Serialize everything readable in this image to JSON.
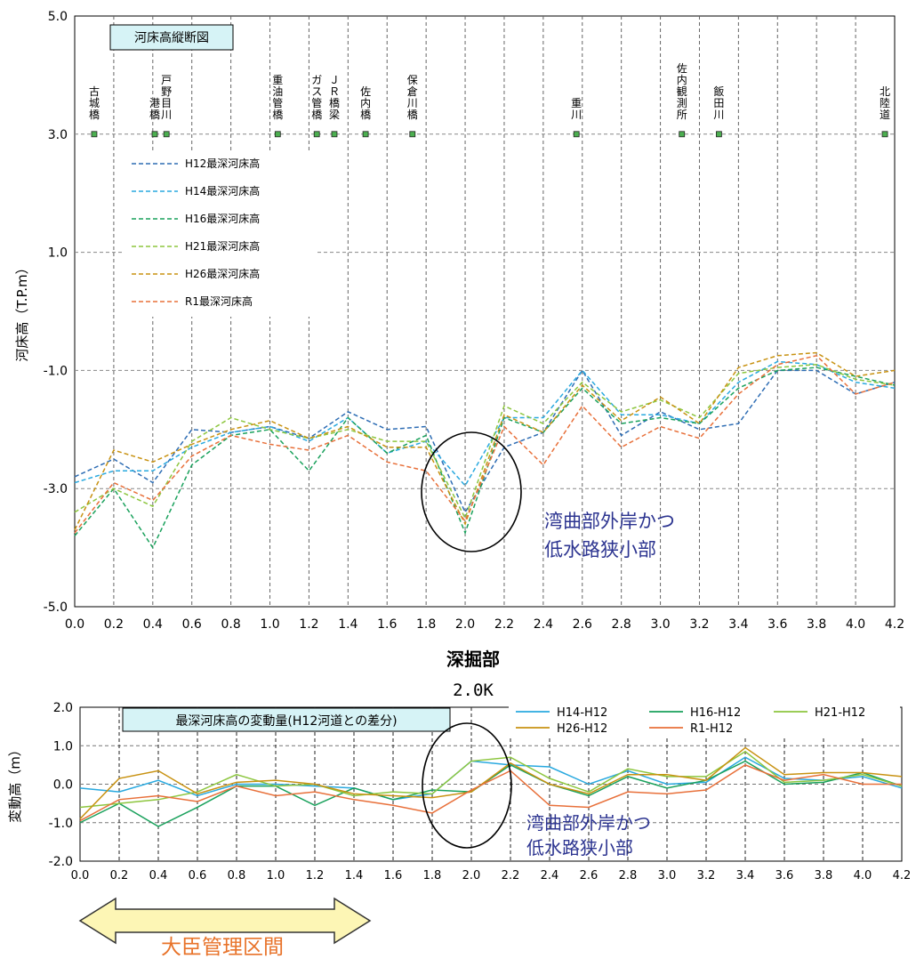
{
  "chart_data": [
    {
      "type": "line",
      "title": "河床高縦断図",
      "ylabel": "河床高（T.P.m）",
      "xlabel": "深掘部",
      "xlim": [
        0.0,
        4.2
      ],
      "ylim": [
        -5.0,
        5.0
      ],
      "x_ticks": [
        "0.0",
        "0.2",
        "0.4",
        "0.6",
        "0.8",
        "1.0",
        "1.2",
        "1.4",
        "1.6",
        "1.8",
        "2.0",
        "2.2",
        "2.4",
        "2.6",
        "2.8",
        "3.0",
        "3.2",
        "3.4",
        "3.6",
        "3.8",
        "4.0",
        "4.2"
      ],
      "y_ticks": [
        "5.0",
        "3.0",
        "1.0",
        "-1.0",
        "-3.0",
        "-5.0"
      ],
      "x": [
        0.0,
        0.2,
        0.4,
        0.6,
        0.8,
        1.0,
        1.2,
        1.4,
        1.6,
        1.8,
        2.0,
        2.2,
        2.4,
        2.6,
        2.8,
        3.0,
        3.2,
        3.4,
        3.6,
        3.8,
        4.0,
        4.2
      ],
      "series": [
        {
          "name": "H12最深河床高",
          "color": "#2e6db4",
          "values": [
            -2.8,
            -2.5,
            -2.9,
            -2.0,
            -2.05,
            -1.95,
            -2.15,
            -1.7,
            -2.0,
            -1.95,
            -3.4,
            -2.3,
            -2.05,
            -1.0,
            -2.1,
            -1.7,
            -2.0,
            -1.9,
            -1.0,
            -1.0,
            -1.4,
            -1.2
          ]
        },
        {
          "name": "H14最深河床高",
          "color": "#29a9df",
          "values": [
            -2.9,
            -2.7,
            -2.7,
            -2.3,
            -2.05,
            -1.95,
            -2.2,
            -1.8,
            -2.4,
            -2.2,
            -2.95,
            -1.8,
            -1.8,
            -1.0,
            -1.75,
            -1.75,
            -1.9,
            -1.2,
            -0.85,
            -0.9,
            -1.2,
            -1.3
          ]
        },
        {
          "name": "H16最深河床高",
          "color": "#1aa15c",
          "values": [
            -3.8,
            -3.0,
            -4.0,
            -2.6,
            -2.1,
            -2.0,
            -2.7,
            -1.8,
            -2.4,
            -2.1,
            -3.75,
            -1.8,
            -2.05,
            -1.3,
            -1.9,
            -1.8,
            -1.9,
            -1.3,
            -1.0,
            -0.95,
            -1.1,
            -1.25
          ]
        },
        {
          "name": "H21最深河床高",
          "color": "#8dc63f",
          "values": [
            -3.4,
            -3.0,
            -3.3,
            -2.2,
            -1.8,
            -2.0,
            -2.15,
            -2.0,
            -2.2,
            -2.2,
            -3.5,
            -1.6,
            -1.9,
            -1.2,
            -1.7,
            -1.5,
            -1.8,
            -1.05,
            -0.95,
            -0.9,
            -1.15,
            -1.25
          ]
        },
        {
          "name": "H26最深河床高",
          "color": "#c89212",
          "values": [
            -3.7,
            -2.35,
            -2.55,
            -2.25,
            -2.0,
            -1.85,
            -2.15,
            -1.95,
            -2.3,
            -2.3,
            -3.6,
            -1.75,
            -2.05,
            -1.25,
            -1.85,
            -1.45,
            -1.9,
            -0.95,
            -0.75,
            -0.7,
            -1.1,
            -1.0
          ]
        },
        {
          "name": "R1最深河床高",
          "color": "#e8703a",
          "values": [
            -3.75,
            -2.9,
            -3.2,
            -2.45,
            -2.1,
            -2.25,
            -2.35,
            -2.1,
            -2.55,
            -2.7,
            -3.55,
            -1.95,
            -2.6,
            -1.6,
            -2.3,
            -1.95,
            -2.15,
            -1.4,
            -0.9,
            -0.75,
            -1.4,
            -1.2
          ]
        }
      ],
      "locations": [
        {
          "name": "古城橋",
          "x": 0.1
        },
        {
          "name": "港橋",
          "x": 0.41
        },
        {
          "name": "戸野目川",
          "x": 0.47
        },
        {
          "name": "重油管橋",
          "x": 1.04
        },
        {
          "name": "ガス管橋",
          "x": 1.24
        },
        {
          "name": "ＪＲ橋梁",
          "x": 1.33
        },
        {
          "name": "佐内橋",
          "x": 1.49
        },
        {
          "name": "保倉川橋",
          "x": 1.73
        },
        {
          "name": "重川",
          "x": 2.57
        },
        {
          "name": "佐内観測所",
          "x": 3.11
        },
        {
          "name": "飯田川",
          "x": 3.3
        },
        {
          "name": "北陸道",
          "x": 4.15
        }
      ],
      "annotation": [
        "湾曲部外岸かつ",
        "低水路狭小部"
      ]
    },
    {
      "type": "line",
      "title": "最深河床高の変動量(H12河道との差分)",
      "ylabel": "変動高（m）",
      "xlabel": "2.0K",
      "xlim": [
        0.0,
        4.2
      ],
      "ylim": [
        -2.0,
        2.0
      ],
      "x_ticks": [
        "0.0",
        "0.2",
        "0.4",
        "0.6",
        "0.8",
        "1.0",
        "1.2",
        "1.4",
        "1.6",
        "1.8",
        "2.0",
        "2.2",
        "2.4",
        "2.6",
        "2.8",
        "3.0",
        "3.2",
        "3.4",
        "3.6",
        "3.8",
        "4.0",
        "4.2"
      ],
      "y_ticks": [
        "2.0",
        "1.0",
        "0.0",
        "-1.0",
        "-2.0"
      ],
      "x": [
        0.0,
        0.2,
        0.4,
        0.6,
        0.8,
        1.0,
        1.2,
        1.4,
        1.6,
        1.8,
        2.0,
        2.2,
        2.4,
        2.6,
        2.8,
        3.0,
        3.2,
        3.4,
        3.6,
        3.8,
        4.0,
        4.2
      ],
      "series": [
        {
          "name": "H14-H12",
          "color": "#29a9df",
          "values": [
            -0.1,
            -0.2,
            0.1,
            -0.3,
            0.0,
            0.0,
            -0.05,
            -0.1,
            -0.4,
            -0.25,
            0.6,
            0.5,
            0.45,
            0.0,
            0.35,
            0.0,
            0.05,
            0.7,
            0.15,
            0.1,
            0.2,
            -0.1
          ]
        },
        {
          "name": "H16-H12",
          "color": "#1aa15c",
          "values": [
            -1.0,
            -0.5,
            -1.1,
            -0.6,
            -0.05,
            -0.05,
            -0.55,
            -0.1,
            -0.4,
            -0.15,
            -0.2,
            0.5,
            0.0,
            -0.3,
            0.2,
            -0.1,
            0.1,
            0.6,
            0.0,
            0.05,
            0.3,
            -0.05
          ]
        },
        {
          "name": "H21-H12",
          "color": "#8dc63f",
          "values": [
            -0.6,
            -0.5,
            -0.4,
            -0.2,
            0.25,
            -0.05,
            0.0,
            -0.3,
            -0.2,
            -0.25,
            0.6,
            0.7,
            0.15,
            -0.2,
            0.4,
            0.2,
            0.2,
            0.85,
            0.05,
            0.1,
            0.25,
            -0.05
          ]
        },
        {
          "name": "H26-H12",
          "color": "#c89212",
          "values": [
            -0.9,
            0.15,
            0.35,
            -0.25,
            0.05,
            0.1,
            0.0,
            -0.25,
            -0.3,
            -0.35,
            -0.2,
            0.55,
            0.0,
            -0.25,
            0.25,
            0.25,
            0.1,
            0.95,
            0.25,
            0.3,
            0.3,
            0.2
          ]
        },
        {
          "name": "R1-H12",
          "color": "#e8703a",
          "values": [
            -0.95,
            -0.4,
            -0.3,
            -0.45,
            -0.05,
            -0.3,
            -0.2,
            -0.4,
            -0.55,
            -0.75,
            -0.15,
            0.35,
            -0.55,
            -0.6,
            -0.2,
            -0.25,
            -0.15,
            0.5,
            0.1,
            0.25,
            0.0,
            0.0
          ]
        }
      ],
      "annotation": [
        "湾曲部外岸かつ",
        "低水路狭小部"
      ]
    }
  ],
  "section_label": "大臣管理区間"
}
